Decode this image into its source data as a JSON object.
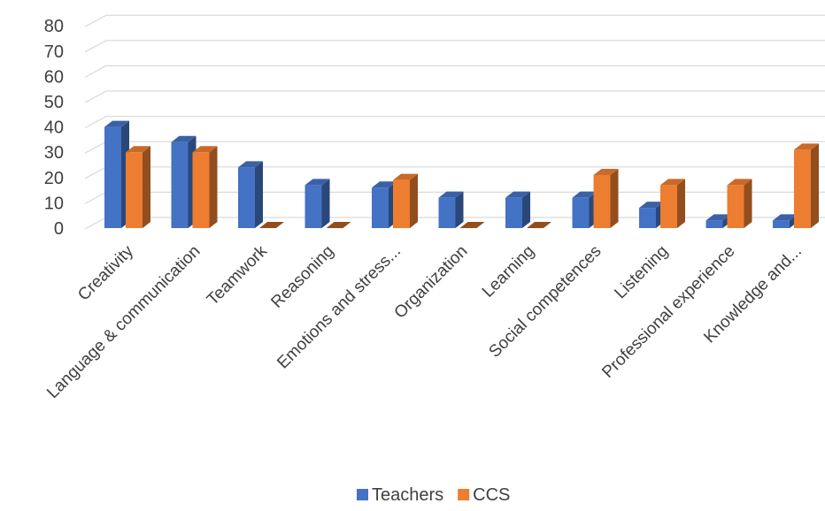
{
  "chart_data": {
    "type": "bar",
    "categories": [
      "Creativity",
      "Language & communication",
      "Teamwork",
      "Reasoning",
      "Emotions and stress...",
      "Organization",
      "Learning",
      "Social competences",
      "Listening",
      "Professional  experience",
      "Knowledge and..."
    ],
    "series": [
      {
        "name": "Teachers",
        "color": "#4472C4",
        "values": [
          40,
          34,
          24,
          17,
          16,
          12,
          12,
          12,
          8,
          3,
          3
        ]
      },
      {
        "name": "CCS",
        "color": "#ED7D31",
        "values": [
          30,
          30,
          0,
          0,
          19,
          0,
          0,
          21,
          17,
          17,
          31
        ]
      }
    ],
    "ylim": [
      0,
      80
    ],
    "yticks": [
      0,
      10,
      20,
      30,
      40,
      50,
      60,
      70,
      80
    ],
    "grid": true,
    "legend": "bottom-center",
    "style": "3d-clustered-column"
  }
}
